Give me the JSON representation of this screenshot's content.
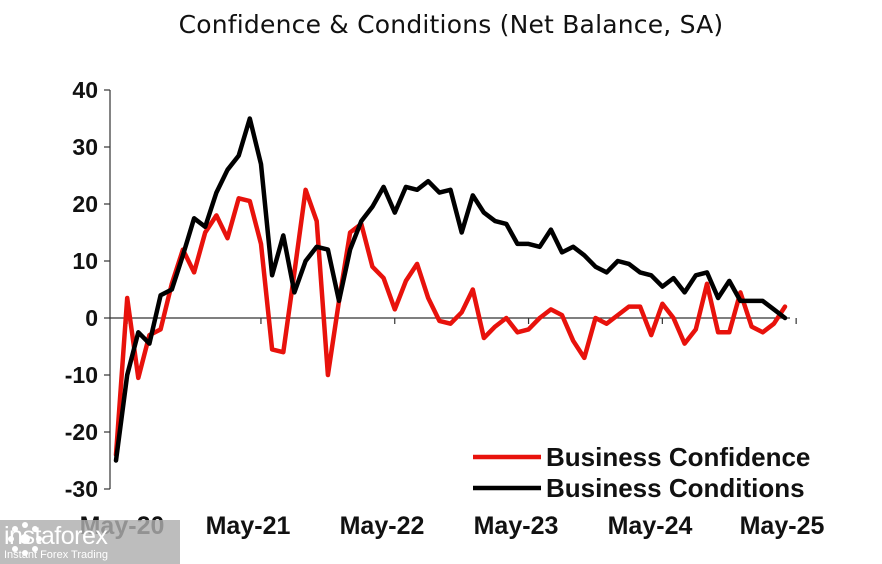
{
  "chart_data": {
    "type": "line",
    "title": "Confidence & Conditions (Net Balance, SA)",
    "xlabel": "",
    "ylabel": "",
    "ylim": [
      -30,
      40
    ],
    "yticks": [
      "40",
      "30",
      "20",
      "10",
      "0",
      "-10",
      "-20",
      "-30"
    ],
    "x_tick_labels": [
      "May-20",
      "May-21",
      "May-22",
      "May-23",
      "May-24",
      "May-25"
    ],
    "x_start": "Apr-20",
    "grid": false,
    "legend_position": "bottom-right",
    "series": [
      {
        "name": "Business Confidence",
        "color": "#e8120c",
        "values": [
          -24,
          3.5,
          -10.5,
          -3,
          -2,
          6,
          12,
          8,
          15,
          18,
          14,
          21,
          20.5,
          13,
          -5.5,
          -6,
          8,
          22.5,
          17,
          -10,
          3,
          15,
          16.5,
          9,
          7,
          1.5,
          6.5,
          9.5,
          3.5,
          -0.5,
          -1,
          1,
          5,
          -3.5,
          -1.5,
          0,
          -2.5,
          -2,
          0,
          1.5,
          0.5,
          -4,
          -7,
          0,
          -1,
          0.5,
          2,
          2,
          -3,
          2.5,
          0,
          -4.5,
          -2,
          6,
          -2.5,
          -2.5,
          4.5,
          -1.5,
          -2.5,
          -1,
          2
        ]
      },
      {
        "name": "Business Conditions",
        "color": "#000000",
        "values": [
          -25,
          -10,
          -2.5,
          -4.5,
          4,
          5,
          11,
          17.5,
          16,
          22,
          26,
          28.5,
          35,
          27,
          7.5,
          14.5,
          4.5,
          10,
          12.5,
          12,
          3,
          12,
          17,
          19.5,
          23,
          18.5,
          23,
          22.5,
          24,
          22,
          22.5,
          15,
          21.5,
          18.5,
          17,
          16.5,
          13,
          13,
          12.5,
          15.5,
          11.5,
          12.5,
          11,
          9,
          8,
          10,
          9.5,
          8,
          7.5,
          5.5,
          7,
          4.5,
          7.5,
          8,
          3.5,
          6.5,
          3,
          3,
          3,
          1.5,
          0
        ]
      }
    ]
  },
  "watermark": {
    "brand": "instaforex",
    "tagline": "Instant Forex Trading"
  }
}
